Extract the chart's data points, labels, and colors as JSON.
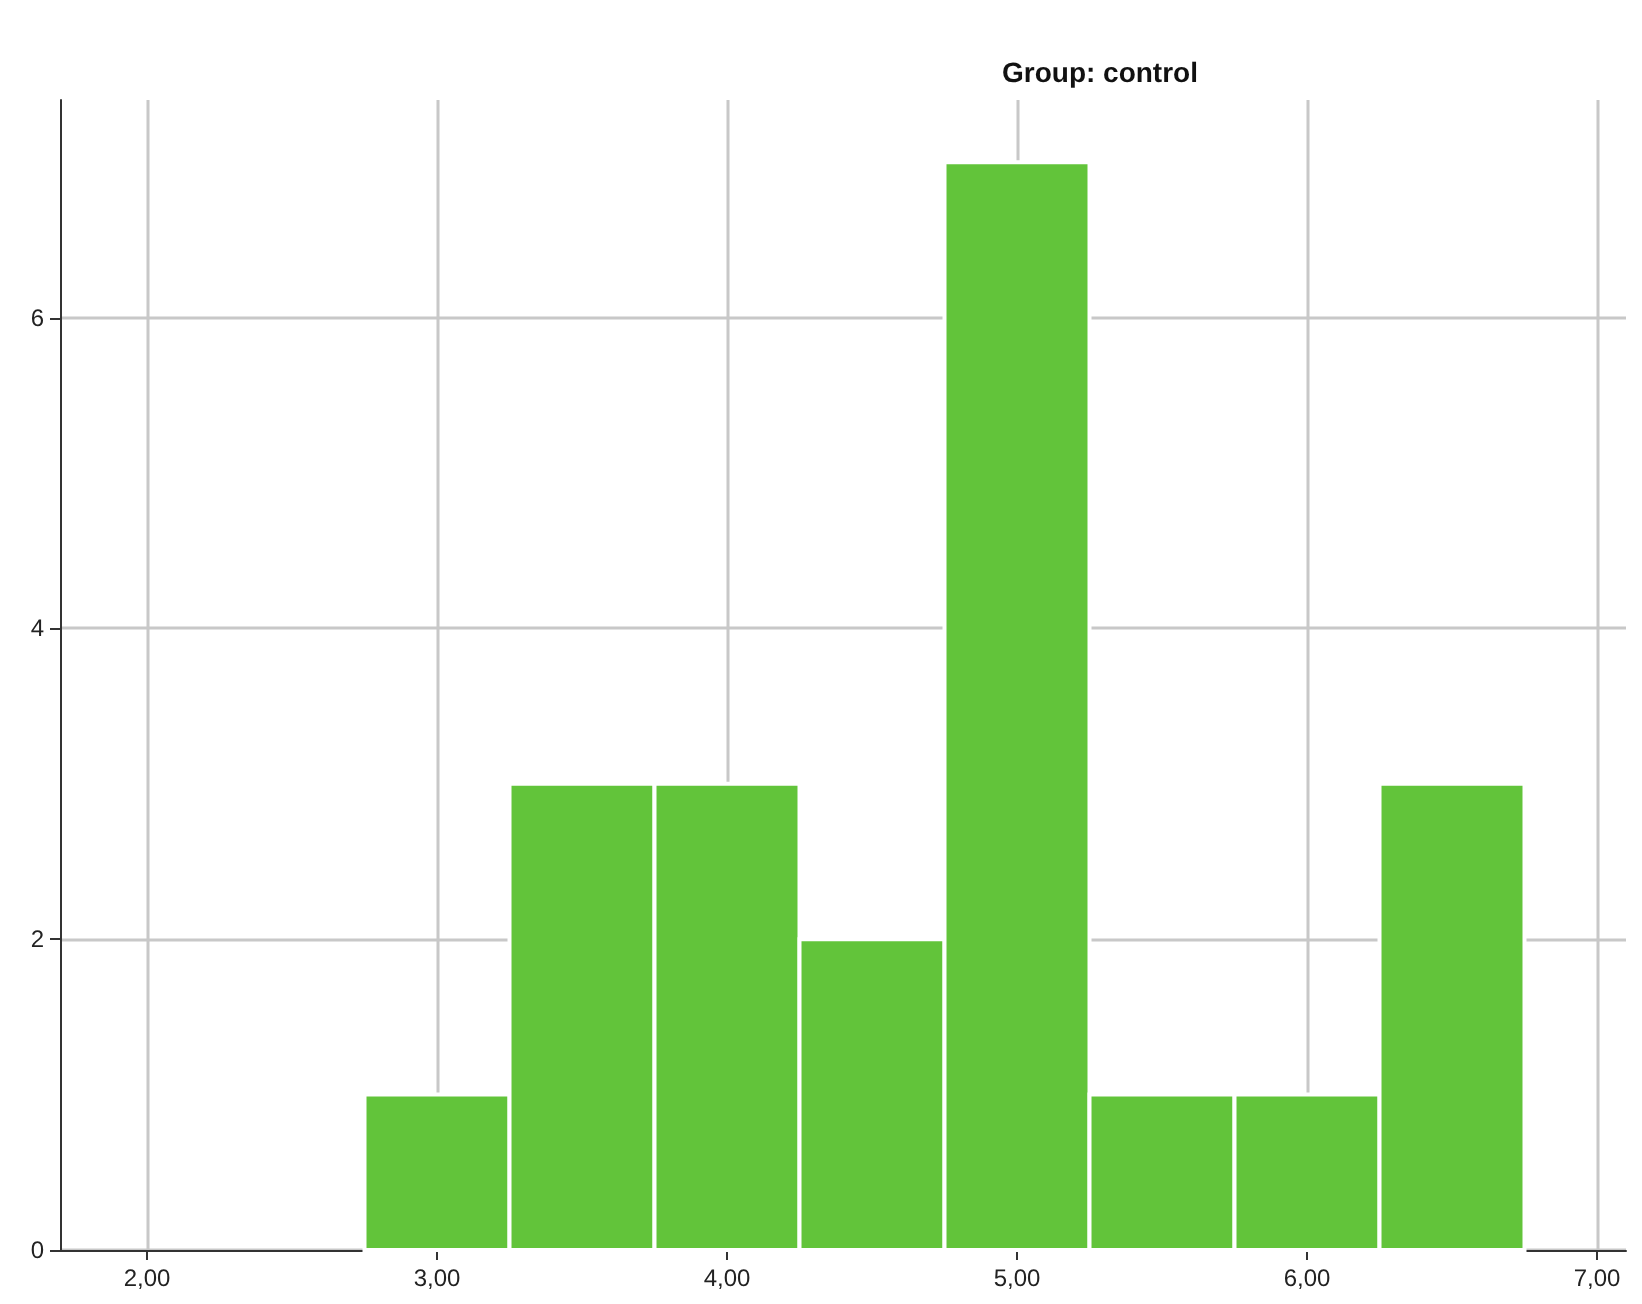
{
  "chart_data": {
    "type": "histogram",
    "title": "Group: control",
    "bins": [
      2.75,
      3.25,
      3.75,
      4.25,
      4.75,
      5.25,
      5.75,
      6.25,
      6.75
    ],
    "values": [
      1,
      3,
      3,
      2,
      7,
      1,
      1,
      3
    ],
    "color": "#62c43a",
    "xlim": [
      1.7,
      7.1
    ],
    "xticks": [
      {
        "value": 2,
        "label": "2,00"
      },
      {
        "value": 3,
        "label": "3,00"
      },
      {
        "value": 4,
        "label": "4,00"
      },
      {
        "value": 5,
        "label": "5,00"
      },
      {
        "value": 6,
        "label": "6,00"
      },
      {
        "value": 7,
        "label": "7,00"
      }
    ],
    "ylim": [
      0,
      7.4
    ],
    "yticks": [
      0,
      2,
      4,
      6
    ],
    "grid": true
  }
}
